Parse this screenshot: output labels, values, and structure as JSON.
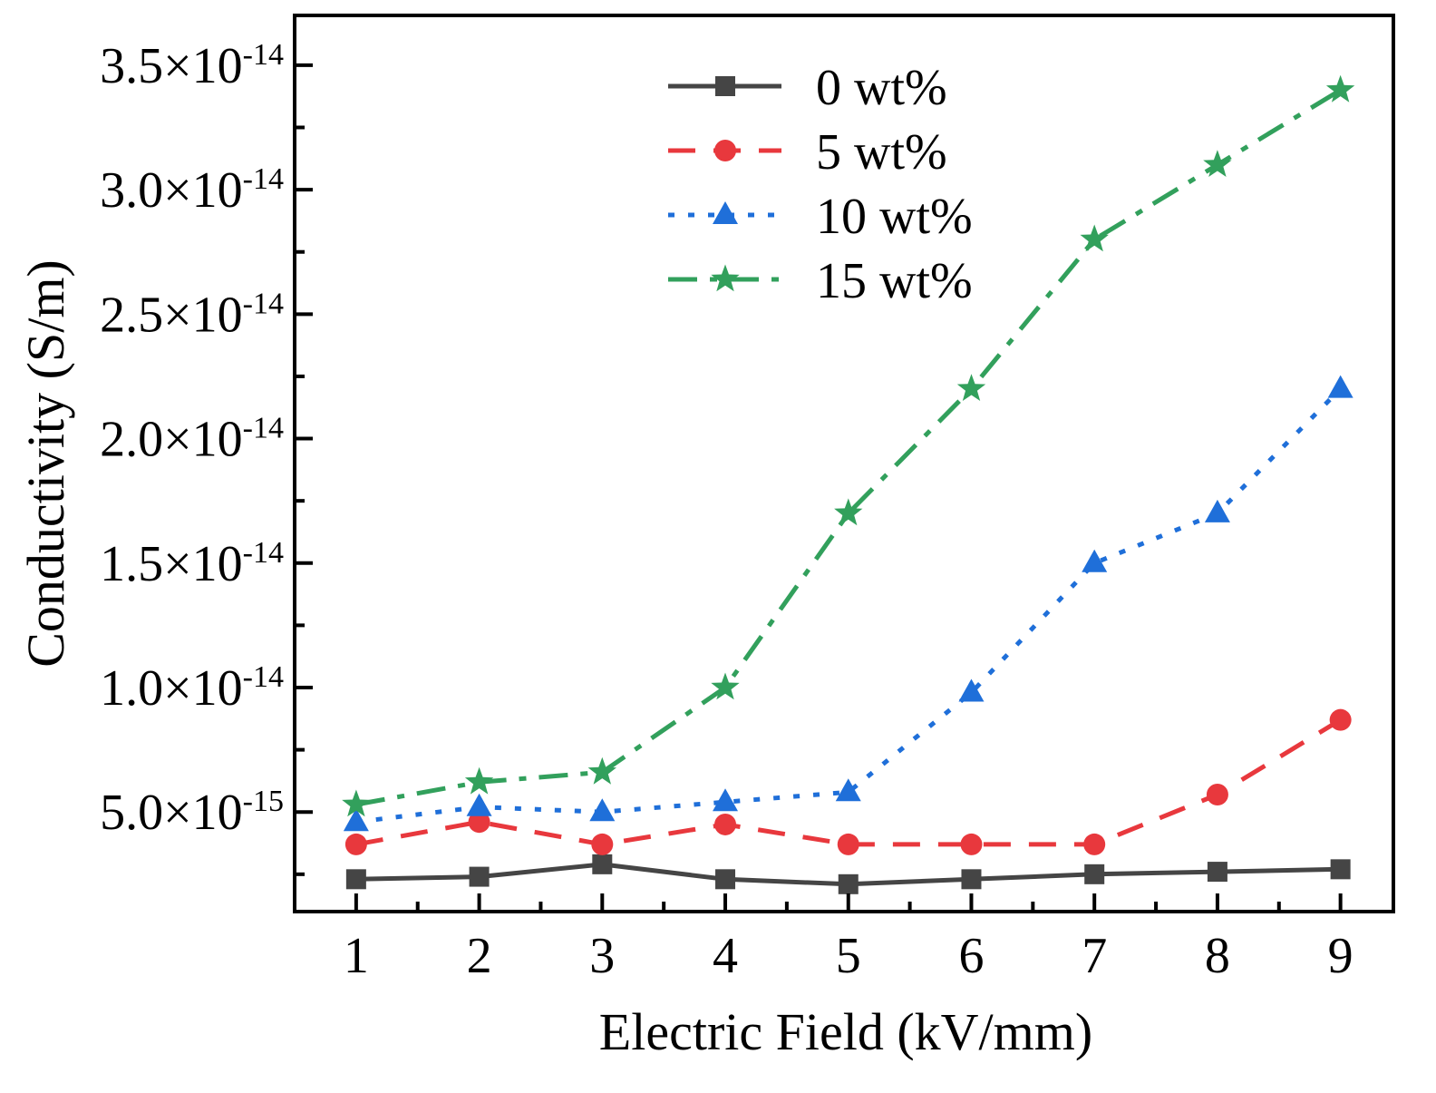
{
  "chart_data": {
    "type": "line",
    "xlabel": "Electric Field (kV/mm)",
    "ylabel": "Conductivity (S/m)",
    "x": [
      1,
      2,
      3,
      4,
      5,
      6,
      7,
      8,
      9
    ],
    "x_tick_labels": [
      "1",
      "2",
      "3",
      "4",
      "5",
      "6",
      "7",
      "8",
      "9"
    ],
    "xlim": [
      0.5,
      9.43
    ],
    "ylim": [
      1e-15,
      3.7e-14
    ],
    "y_ticks": [
      {
        "value": 5e-15,
        "base": "5.0×10",
        "exp": "-15"
      },
      {
        "value": 1e-14,
        "base": "1.0×10",
        "exp": "-14"
      },
      {
        "value": 1.5e-14,
        "base": "1.5×10",
        "exp": "-14"
      },
      {
        "value": 2e-14,
        "base": "2.0×10",
        "exp": "-14"
      },
      {
        "value": 2.5e-14,
        "base": "2.5×10",
        "exp": "-14"
      },
      {
        "value": 3e-14,
        "base": "3.0×10",
        "exp": "-14"
      },
      {
        "value": 3.5e-14,
        "base": "3.5×10",
        "exp": "-14"
      }
    ],
    "grid": false,
    "legend_position": "top-center",
    "series": [
      {
        "name": "0 wt%",
        "color": "#454545",
        "marker": "square",
        "values": [
          2.3e-15,
          2.4e-15,
          2.9e-15,
          2.3e-15,
          2.1e-15,
          2.3e-15,
          2.5e-15,
          2.6e-15,
          2.7e-15
        ]
      },
      {
        "name": "5 wt%",
        "color": "#e8383d",
        "marker": "circle",
        "values": [
          3.7e-15,
          4.6e-15,
          3.7e-15,
          4.5e-15,
          3.7e-15,
          3.7e-15,
          3.7e-15,
          5.7e-15,
          8.7e-15
        ]
      },
      {
        "name": "10 wt%",
        "color": "#1f6fd9",
        "marker": "triangle",
        "values": [
          4.6e-15,
          5.2e-15,
          5e-15,
          5.4e-15,
          5.8e-15,
          9.8e-15,
          1.5e-14,
          1.7e-14,
          2.2e-14
        ]
      },
      {
        "name": "15 wt%",
        "color": "#32a05c",
        "marker": "star",
        "values": [
          5.3e-15,
          6.2e-15,
          6.6e-15,
          1e-14,
          1.7e-14,
          2.2e-14,
          2.8e-14,
          3.1e-14,
          3.4e-14
        ]
      }
    ]
  }
}
